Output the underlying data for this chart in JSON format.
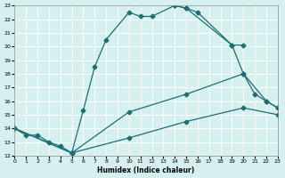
{
  "xlabel": "Humidex (Indice chaleur)",
  "xlim": [
    0,
    23
  ],
  "ylim": [
    12,
    23
  ],
  "xticks": [
    0,
    1,
    2,
    3,
    4,
    5,
    6,
    7,
    8,
    9,
    10,
    11,
    12,
    13,
    14,
    15,
    16,
    17,
    18,
    19,
    20,
    21,
    22,
    23
  ],
  "yticks": [
    12,
    13,
    14,
    15,
    16,
    17,
    18,
    19,
    20,
    21,
    22,
    23
  ],
  "bg_color": "#d6f0f0",
  "line_color": "#1a7070",
  "grid_color": "#ffffff",
  "line1_x": [
    0,
    1,
    2,
    3,
    4,
    5,
    6,
    7,
    8,
    10,
    11,
    12,
    14,
    15,
    19,
    20
  ],
  "line1_y": [
    14,
    13.5,
    13.5,
    13,
    12.7,
    12.2,
    15.3,
    18.5,
    20.5,
    22.5,
    22.2,
    22.2,
    23,
    22.8,
    20.1,
    20.1
  ],
  "line2_x": [
    14,
    15,
    16,
    19,
    20,
    21,
    22,
    23
  ],
  "line2_y": [
    23,
    22.8,
    22.5,
    20.1,
    18,
    16.5,
    16.0,
    15.5
  ],
  "line3_x": [
    0,
    5,
    10,
    15,
    20,
    22,
    23
  ],
  "line3_y": [
    14,
    12.2,
    15.2,
    16.5,
    18,
    16.0,
    15.5
  ],
  "line4_x": [
    0,
    5,
    10,
    15,
    20,
    23
  ],
  "line4_y": [
    14,
    12.2,
    13.3,
    14.5,
    15.5,
    15.0
  ]
}
